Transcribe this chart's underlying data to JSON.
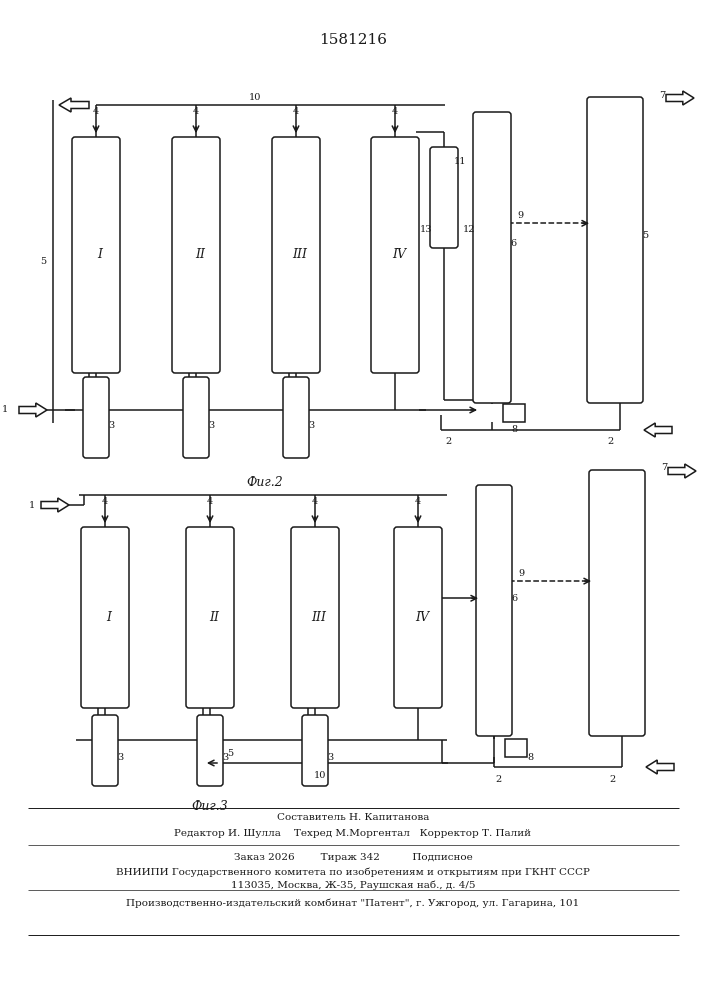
{
  "patent_number": "1581216",
  "fig2_label": "Фиг.2",
  "fig3_label": "Фиг.3",
  "footer_line0": "Составитель Н. Капитанова",
  "footer_line1": "Редактор И. Шулла    Техред М.Моргентал   Корректор Т. Палий",
  "footer_line2": "Заказ 2026        Тираж 342          Подписное",
  "footer_line3": "ВНИИПИ Государственного комитета по изобретениям и открытиям при ГКНТ СССР",
  "footer_line4": "113035, Москва, Ж-35, Раушская наб., д. 4/5",
  "footer_line5": "Производственно-издательский комбинат \"Патент\", г. Ужгород, ул. Гагарина, 101",
  "bg_color": "#ffffff",
  "lc": "#1a1a1a"
}
